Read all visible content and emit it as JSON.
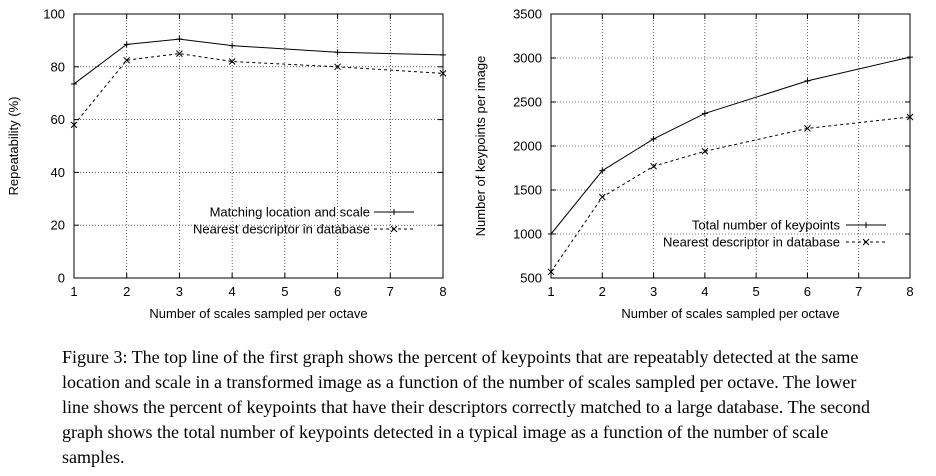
{
  "chart_data": [
    {
      "type": "line",
      "xlabel": "Number of scales sampled per octave",
      "ylabel": "Repeatability (%)",
      "xlim": [
        1,
        8
      ],
      "ylim": [
        0,
        100
      ],
      "x_ticks": [
        1,
        2,
        3,
        4,
        5,
        6,
        7,
        8
      ],
      "y_ticks": [
        0,
        20,
        40,
        60,
        80,
        100
      ],
      "grid": true,
      "legend_position": "lower-right",
      "x": [
        1,
        2,
        3,
        4,
        6,
        8
      ],
      "series": [
        {
          "name": "Matching location and scale",
          "style": "solid",
          "marker": "+",
          "values": [
            73.5,
            88.5,
            90.5,
            88,
            85.5,
            84.5
          ]
        },
        {
          "name": "Nearest descriptor in database",
          "style": "dashed",
          "marker": "x",
          "values": [
            58,
            82.5,
            85,
            82,
            80,
            77.5
          ]
        }
      ]
    },
    {
      "type": "line",
      "xlabel": "Number of scales sampled per octave",
      "ylabel": "Number of keypoints per image",
      "xlim": [
        1,
        8
      ],
      "ylim": [
        500,
        3500
      ],
      "x_ticks": [
        1,
        2,
        3,
        4,
        5,
        6,
        7,
        8
      ],
      "y_ticks": [
        500,
        1000,
        1500,
        2000,
        2500,
        3000,
        3500
      ],
      "grid": true,
      "legend_position": "lower-right",
      "x": [
        1,
        2,
        3,
        4,
        6,
        8
      ],
      "series": [
        {
          "name": "Total number of keypoints",
          "style": "solid",
          "marker": "+",
          "values": [
            1000,
            1720,
            2080,
            2370,
            2740,
            3010
          ]
        },
        {
          "name": "Nearest descriptor in database",
          "style": "dashed",
          "marker": "x",
          "values": [
            570,
            1420,
            1770,
            1940,
            2200,
            2330
          ]
        }
      ]
    }
  ],
  "caption": "Figure 3: The top line of the first graph shows the percent of keypoints that are repeatably detected at the same location and scale in a transformed image as a function of the number of scales sampled per octave. The lower line shows the percent of keypoints that have their descriptors correctly matched to a large database. The second graph shows the total number of keypoints detected in a typical image as a function of the number of scale samples."
}
